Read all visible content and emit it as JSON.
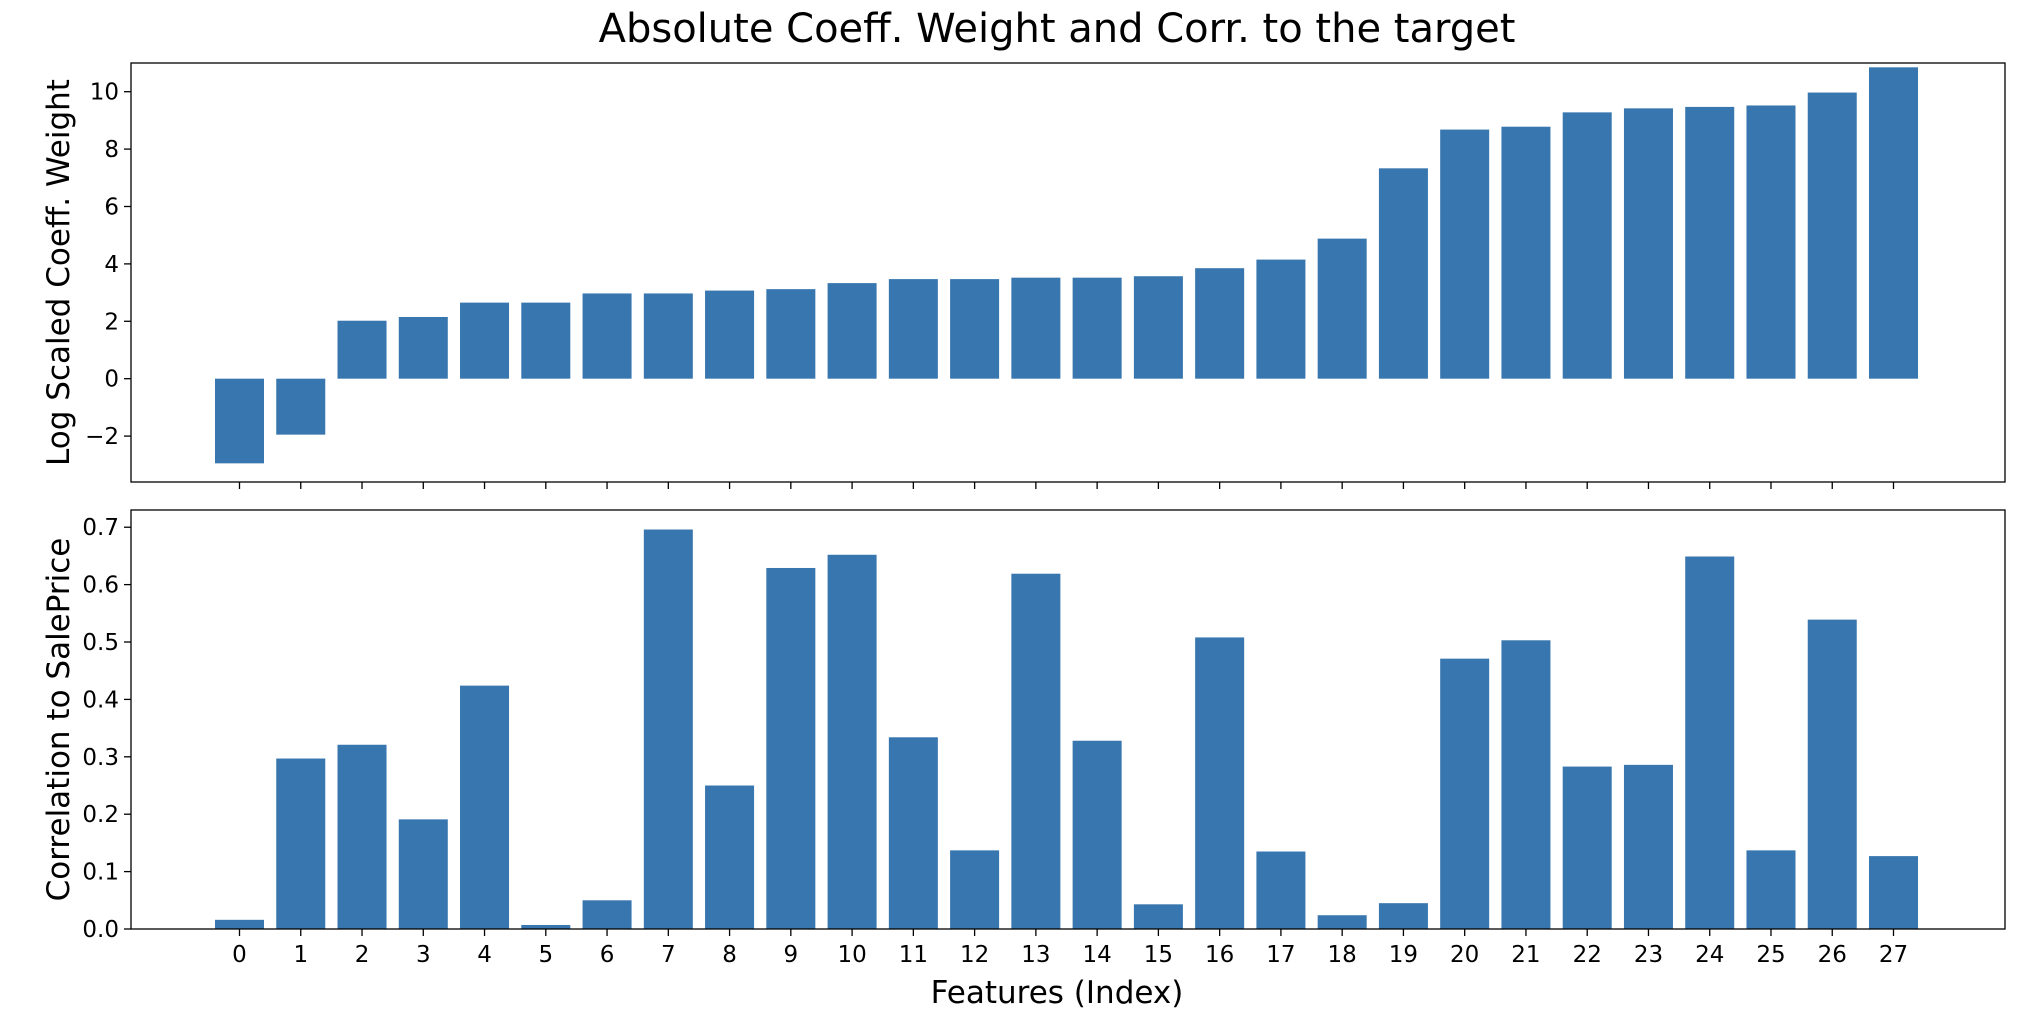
{
  "title": "Absolute Coeff. Weight and Corr. to the target",
  "colors": {
    "bar": "#3776ae",
    "axis": "#000000"
  },
  "chart_data": [
    {
      "type": "bar",
      "ylabel": "Log Scaled Coeff. Weight",
      "xlabel": "",
      "ylim": [
        -3.6,
        11.0
      ],
      "yticks": [
        -2,
        0,
        2,
        4,
        6,
        8,
        10
      ],
      "ytick_labels": [
        "−2",
        "0",
        "2",
        "4",
        "6",
        "8",
        "10"
      ],
      "categories": [
        "0",
        "1",
        "2",
        "3",
        "4",
        "5",
        "6",
        "7",
        "8",
        "9",
        "10",
        "11",
        "12",
        "13",
        "14",
        "15",
        "16",
        "17",
        "18",
        "19",
        "20",
        "21",
        "22",
        "23",
        "24",
        "25",
        "26",
        "27"
      ],
      "values": [
        -2.95,
        -1.95,
        2.02,
        2.15,
        2.65,
        2.65,
        2.97,
        2.97,
        3.07,
        3.12,
        3.33,
        3.47,
        3.47,
        3.52,
        3.52,
        3.57,
        3.85,
        4.15,
        4.88,
        7.33,
        8.68,
        8.78,
        9.28,
        9.42,
        9.47,
        9.52,
        9.97,
        10.85
      ],
      "show_tick_labels": false
    },
    {
      "type": "bar",
      "ylabel": "Correlation to SalePrice",
      "xlabel": "Features (Index)",
      "ylim": [
        0.0,
        0.73
      ],
      "yticks": [
        0.0,
        0.1,
        0.2,
        0.3,
        0.4,
        0.5,
        0.6,
        0.7
      ],
      "ytick_labels": [
        "0.0",
        "0.1",
        "0.2",
        "0.3",
        "0.4",
        "0.5",
        "0.6",
        "0.7"
      ],
      "categories": [
        "0",
        "1",
        "2",
        "3",
        "4",
        "5",
        "6",
        "7",
        "8",
        "9",
        "10",
        "11",
        "12",
        "13",
        "14",
        "15",
        "16",
        "17",
        "18",
        "19",
        "20",
        "21",
        "22",
        "23",
        "24",
        "25",
        "26",
        "27"
      ],
      "values": [
        0.016,
        0.297,
        0.321,
        0.191,
        0.424,
        0.007,
        0.05,
        0.696,
        0.25,
        0.629,
        0.652,
        0.334,
        0.137,
        0.619,
        0.328,
        0.043,
        0.508,
        0.135,
        0.024,
        0.045,
        0.471,
        0.503,
        0.283,
        0.286,
        0.649,
        0.137,
        0.539,
        0.127
      ],
      "show_tick_labels": true
    }
  ]
}
